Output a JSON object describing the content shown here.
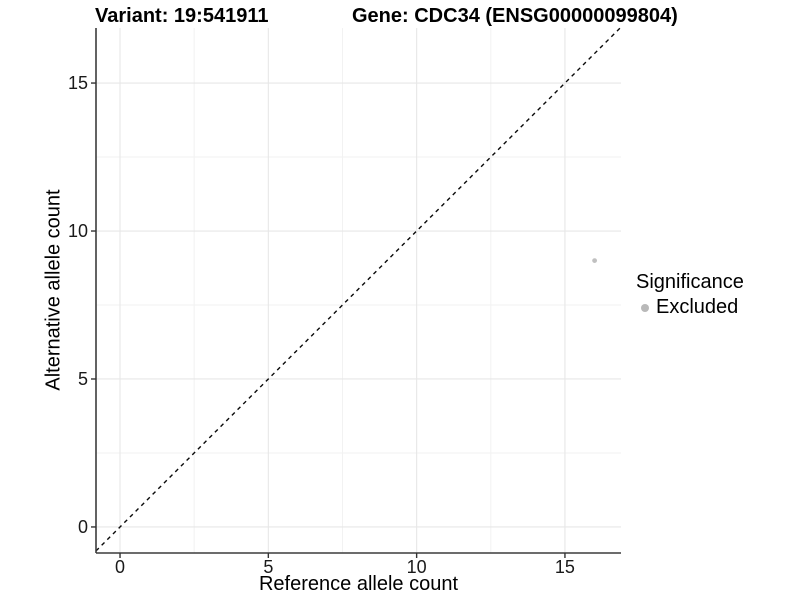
{
  "title": {
    "variant": "Variant: 19:541911",
    "gene": "Gene: CDC34 (ENSG00000099804)"
  },
  "axes": {
    "x": {
      "label": "Reference allele count"
    },
    "y": {
      "label": "Alternative allele count"
    }
  },
  "legend": {
    "title": "Significance",
    "items": [
      {
        "label": "Excluded",
        "color": "#b9b9b9"
      }
    ]
  },
  "colors": {
    "background": "#ffffff",
    "point": "#c0c0c0",
    "grid_major": "#e7e7e7",
    "grid_minor": "#f2f2f2",
    "axis_line": "#3c3c3c",
    "tick_mark": "#333333",
    "reference_line": "#0a0a0a",
    "text": "#000000"
  },
  "chart_data": {
    "type": "scatter",
    "title": "Variant: 19:541911    Gene: CDC34 (ENSG00000099804)",
    "xlabel": "Reference allele count",
    "ylabel": "Alternative allele count",
    "xlim": [
      -0.81,
      16.89
    ],
    "ylim": [
      -0.88,
      16.86
    ],
    "x_ticks": [
      0,
      5,
      10,
      15
    ],
    "y_ticks": [
      0,
      5,
      10,
      15
    ],
    "x_minor_ticks": [
      2.5,
      7.5,
      12.5
    ],
    "y_minor_ticks": [
      2.5,
      7.5,
      12.5
    ],
    "grid": true,
    "legend_position": "right",
    "legend_title": "Significance",
    "series": [
      {
        "name": "Excluded",
        "color": "#c0c0c0",
        "points": [
          {
            "x": 16,
            "y": 9
          }
        ]
      }
    ],
    "reference_line": {
      "kind": "identity",
      "slope": 1,
      "intercept": 0,
      "style": "dashed",
      "color": "#0a0a0a"
    }
  }
}
